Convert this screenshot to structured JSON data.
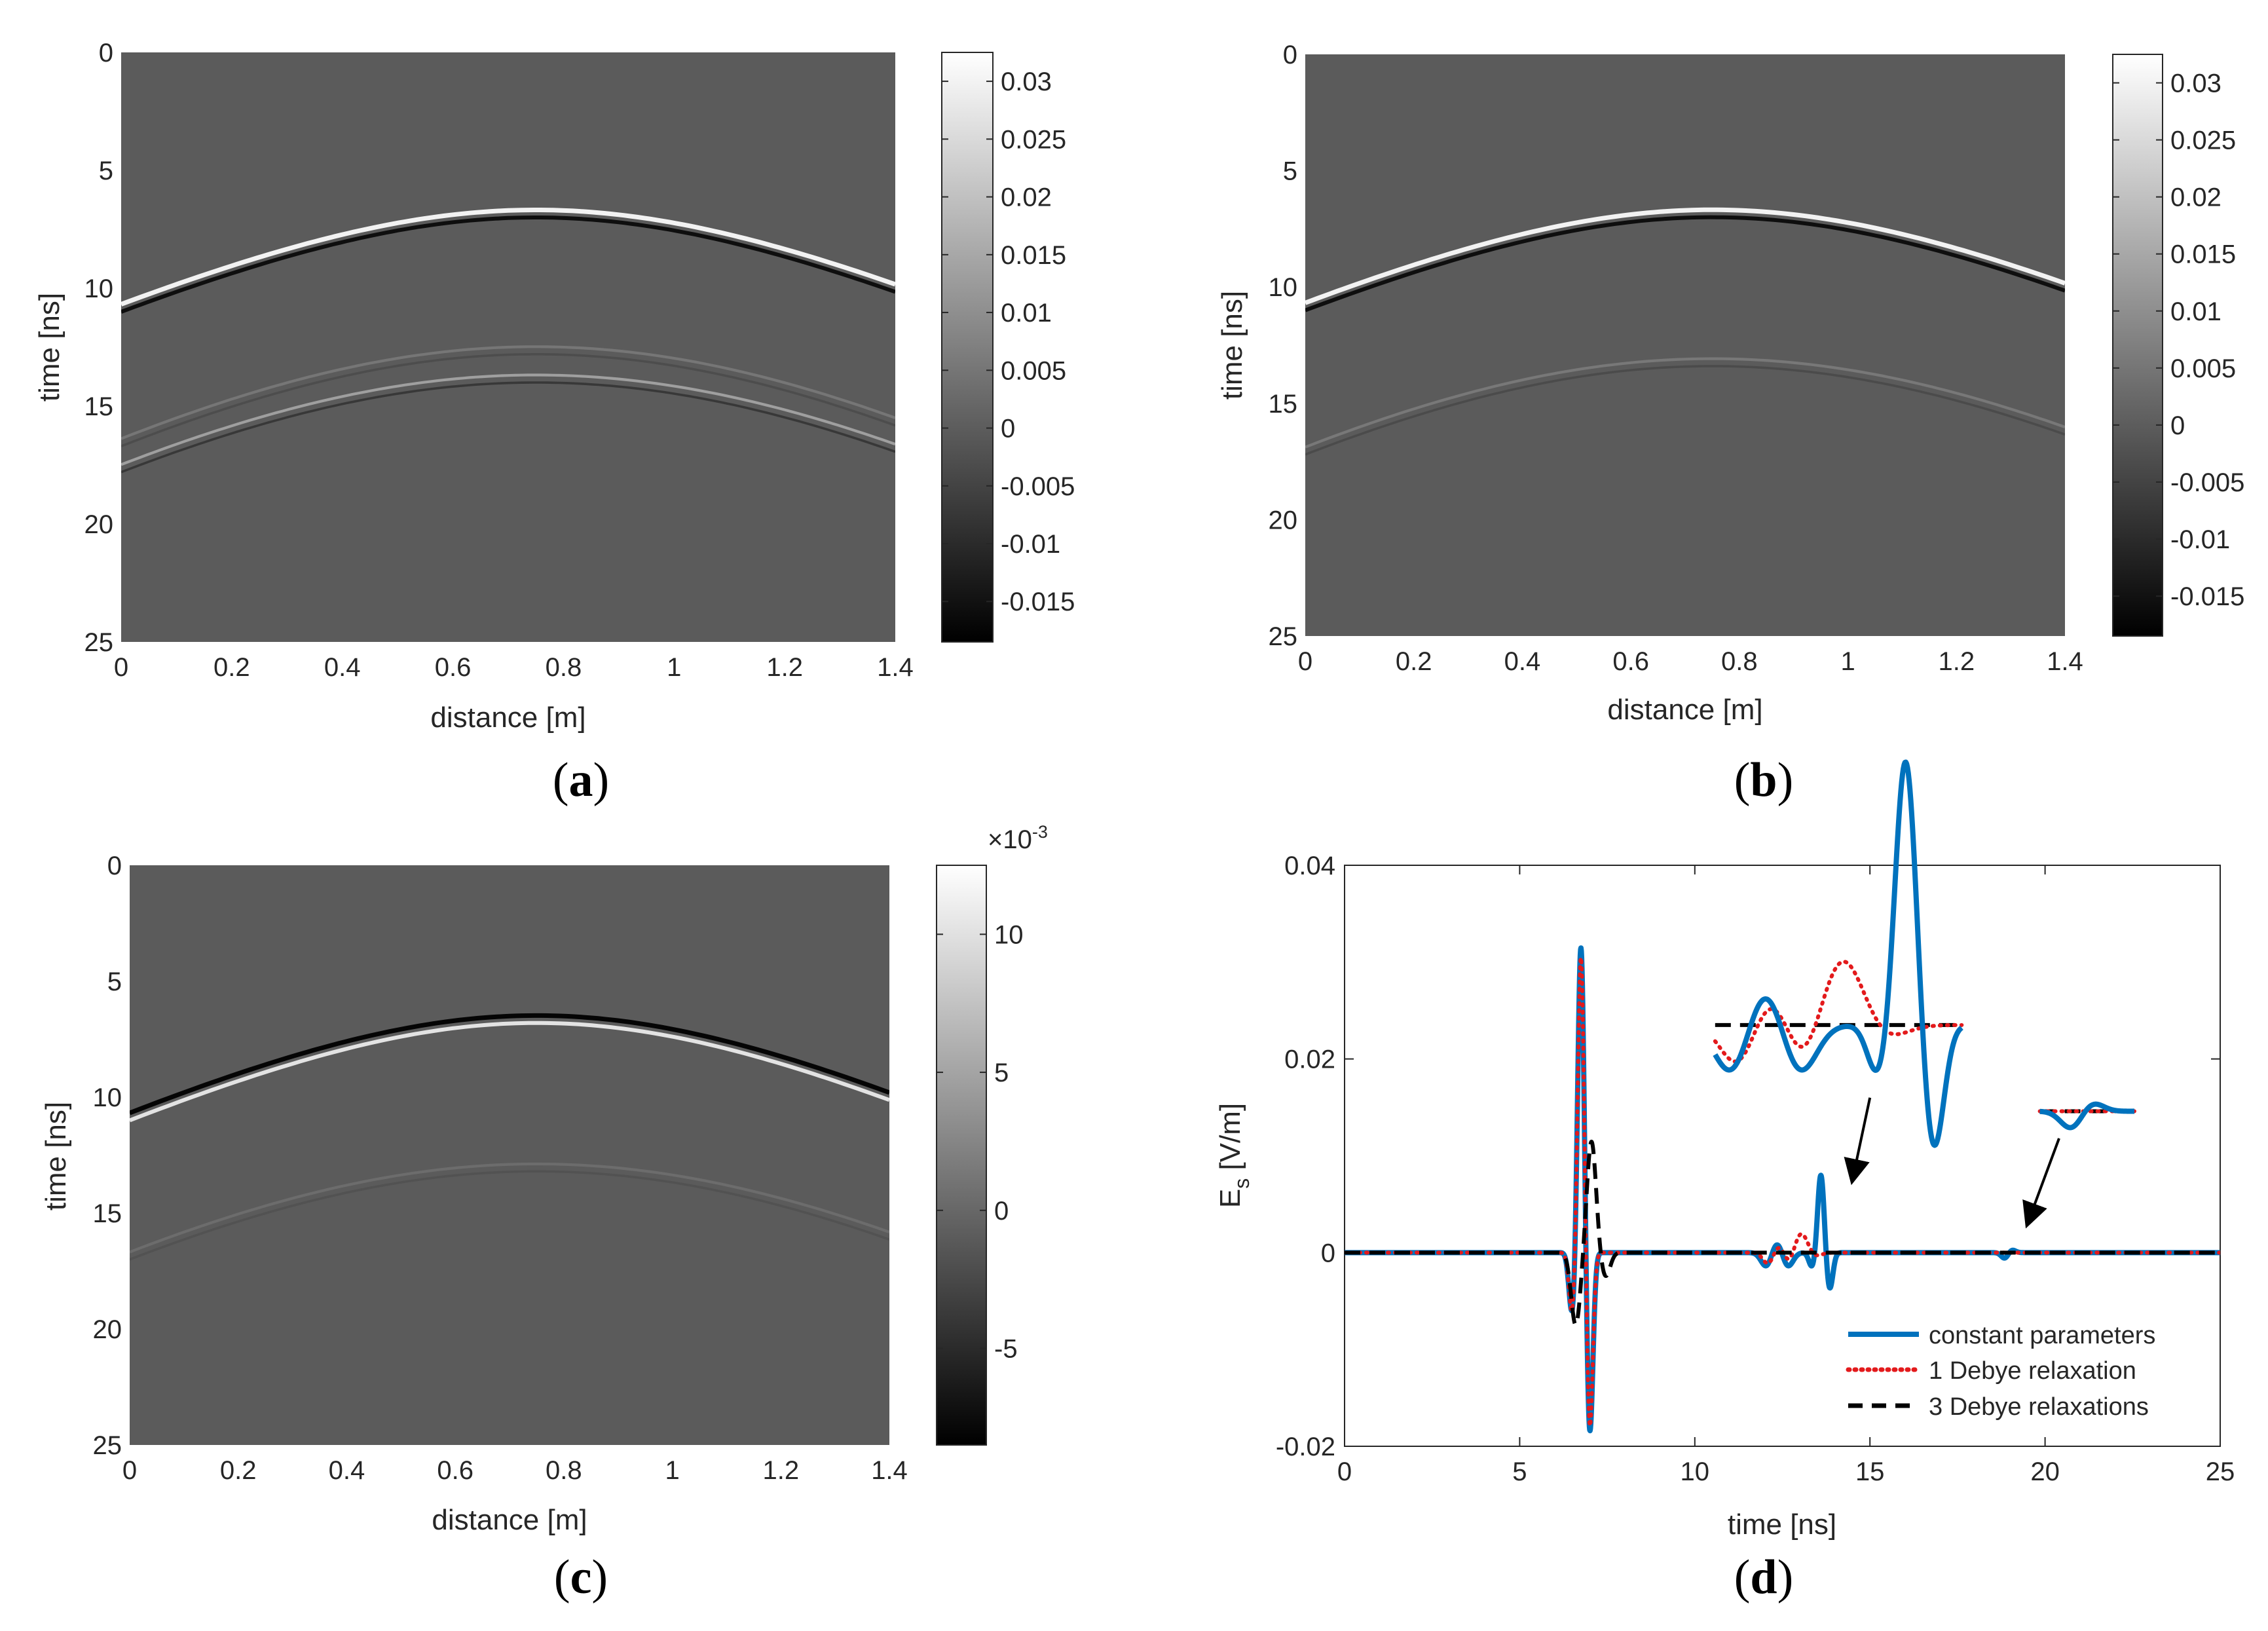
{
  "colors": {
    "blue": "#0072BD",
    "red": "#E31A1C",
    "black": "#000000",
    "background_gray": "#595959"
  },
  "chart_data": [
    {
      "id": "a",
      "type": "heatmap",
      "panel_label": {
        "open": "(",
        "letter": "a",
        "close": ")"
      },
      "xlabel": "distance [m]",
      "ylabel": "time [ns]",
      "xlim": [
        0,
        1.4
      ],
      "ylim": [
        25,
        0
      ],
      "xticks": [
        "0",
        "0.2",
        "0.4",
        "0.6",
        "0.8",
        "1",
        "1.2",
        "1.4"
      ],
      "yticks": [
        "0",
        "5",
        "10",
        "15",
        "20",
        "25"
      ],
      "colorbar": {
        "range": [
          -0.0185,
          0.0325
        ],
        "ticks": [
          0.03,
          0.025,
          0.02,
          0.015,
          0.01,
          0.005,
          0,
          -0.005,
          -0.01,
          -0.015
        ],
        "tick_labels": [
          "0.03",
          "0.025",
          "0.02",
          "0.015",
          "0.01",
          "0.005",
          "0",
          "-0.005",
          "-0.01",
          "-0.015"
        ]
      },
      "hyperbolas": [
        {
          "apex_x": 0.75,
          "apex_t": 6.8,
          "edge_t": 10.8,
          "strength": 1.0,
          "polarity": "white-leading"
        },
        {
          "apex_x": 0.75,
          "apex_t": 13.8,
          "edge_t": 17.6,
          "strength": 0.45,
          "polarity": "white-leading"
        },
        {
          "apex_x": 0.75,
          "apex_t": 12.6,
          "edge_t": 16.5,
          "strength": 0.18,
          "polarity": "white-leading"
        }
      ]
    },
    {
      "id": "b",
      "type": "heatmap",
      "panel_label": {
        "open": "(",
        "letter": "b",
        "close": ")"
      },
      "xlabel": "distance [m]",
      "ylabel": "time [ns]",
      "xlim": [
        0,
        1.4
      ],
      "ylim": [
        25,
        0
      ],
      "xticks": [
        "0",
        "0.2",
        "0.4",
        "0.6",
        "0.8",
        "1",
        "1.2",
        "1.4"
      ],
      "yticks": [
        "0",
        "5",
        "10",
        "15",
        "20",
        "25"
      ],
      "colorbar": {
        "range": [
          -0.0185,
          0.0325
        ],
        "ticks": [
          0.03,
          0.025,
          0.02,
          0.015,
          0.01,
          0.005,
          0,
          -0.005,
          -0.01,
          -0.015
        ],
        "tick_labels": [
          "0.03",
          "0.025",
          "0.02",
          "0.015",
          "0.01",
          "0.005",
          "0",
          "-0.005",
          "-0.01",
          "-0.015"
        ]
      },
      "hyperbolas": [
        {
          "apex_x": 0.75,
          "apex_t": 6.8,
          "edge_t": 10.8,
          "strength": 1.0,
          "polarity": "white-leading"
        },
        {
          "apex_x": 0.75,
          "apex_t": 13.2,
          "edge_t": 17.0,
          "strength": 0.2,
          "polarity": "white-leading"
        }
      ]
    },
    {
      "id": "c",
      "type": "heatmap",
      "panel_label": {
        "open": "(",
        "letter": "c",
        "close": ")"
      },
      "xlabel": "distance [m]",
      "ylabel": "time [ns]",
      "xlim": [
        0,
        1.4
      ],
      "ylim": [
        25,
        0
      ],
      "xticks": [
        "0",
        "0.2",
        "0.4",
        "0.6",
        "0.8",
        "1",
        "1.2",
        "1.4"
      ],
      "yticks": [
        "0",
        "5",
        "10",
        "15",
        "20",
        "25"
      ],
      "colorbar": {
        "range": [
          -8.5,
          12.5
        ],
        "multiplier_base": "×10",
        "multiplier_exp": "-3",
        "ticks": [
          10,
          5,
          0,
          -5
        ],
        "tick_labels": [
          "10",
          "5",
          "0",
          "-5"
        ]
      },
      "hyperbolas": [
        {
          "apex_x": 0.75,
          "apex_t": 6.6,
          "edge_t": 10.8,
          "strength": 1.0,
          "polarity": "black-leading"
        },
        {
          "apex_x": 0.75,
          "apex_t": 13.0,
          "edge_t": 16.8,
          "strength": 0.12,
          "polarity": "white-leading"
        }
      ]
    },
    {
      "id": "d",
      "type": "line",
      "panel_label": {
        "open": "(",
        "letter": "d",
        "close": ")"
      },
      "xlabel": "time [ns]",
      "ylabel": {
        "main": "E",
        "sub": "s",
        "unit": " [V/m]"
      },
      "xlim": [
        0,
        25
      ],
      "ylim": [
        -0.02,
        0.04
      ],
      "xticks": [
        0,
        5,
        10,
        15,
        20,
        25
      ],
      "xtick_labels": [
        "0",
        "5",
        "10",
        "15",
        "20",
        "25"
      ],
      "yticks": [
        -0.02,
        0,
        0.02,
        0.04
      ],
      "ytick_labels": [
        "-0.02",
        "0",
        "0.02",
        "0.04"
      ],
      "legend_position": "bottom-right",
      "series": [
        {
          "name": "constant parameters",
          "style": "solid",
          "color": "#0072BD",
          "pulses": [
            {
              "t": 6.75,
              "amps": [
                [
                  -0.25,
                  -0.0065
                ],
                [
                  0.0,
                  0.032
                ],
                [
                  0.25,
                  -0.019
                ]
              ],
              "width": 0.09
            },
            {
              "t": 12.35,
              "amps": [
                [
                  -0.3,
                  -0.0015
                ],
                [
                  0.0,
                  0.0012
                ],
                [
                  0.3,
                  -0.0015
                ]
              ],
              "width": 0.15
            },
            {
              "t": 13.6,
              "amps": [
                [
                  -0.25,
                  -0.0015
                ],
                [
                  0.0,
                  0.0081
                ],
                [
                  0.25,
                  -0.0038
                ]
              ],
              "width": 0.09
            },
            {
              "t": 19.0,
              "amps": [
                [
                  -0.15,
                  -0.0006
                ],
                [
                  0.05,
                  0.0003
                ]
              ],
              "width": 0.1
            }
          ]
        },
        {
          "name": "1 Debye relaxation",
          "style": "dotted",
          "color": "#E31A1C",
          "pulses": [
            {
              "t": 6.75,
              "amps": [
                [
                  -0.25,
                  -0.0065
                ],
                [
                  0.0,
                  0.031
                ],
                [
                  0.25,
                  -0.0185
                ]
              ],
              "width": 0.09
            },
            {
              "t": 12.4,
              "amps": [
                [
                  -0.3,
                  -0.0012
                ],
                [
                  0.0,
                  0.0008
                ],
                [
                  0.3,
                  -0.0012
                ]
              ],
              "width": 0.15
            },
            {
              "t": 13.05,
              "amps": [
                [
                  0.0,
                  0.0022
                ],
                [
                  0.3,
                  -0.0006
                ]
              ],
              "width": 0.2
            }
          ]
        },
        {
          "name": "3 Debye relaxations",
          "style": "dashed",
          "color": "#000000",
          "pulses": [
            {
              "t": 6.65,
              "amps": [
                [
                  -0.05,
                  -0.0075
                ],
                [
                  0.4,
                  0.0115
                ],
                [
                  0.8,
                  -0.0025
                ]
              ],
              "width": 0.13
            }
          ]
        }
      ],
      "insets": [
        {
          "center_t": 14.1,
          "center_v": 0.0235,
          "from_t": 15.0,
          "from_v": 0.016,
          "to_t": 14.5,
          "to_v": 0.0075
        },
        {
          "center_t": 21.2,
          "center_v": 0.0146,
          "from_t": 20.4,
          "from_v": 0.0118,
          "to_t": 19.5,
          "to_v": 0.003
        }
      ]
    }
  ]
}
